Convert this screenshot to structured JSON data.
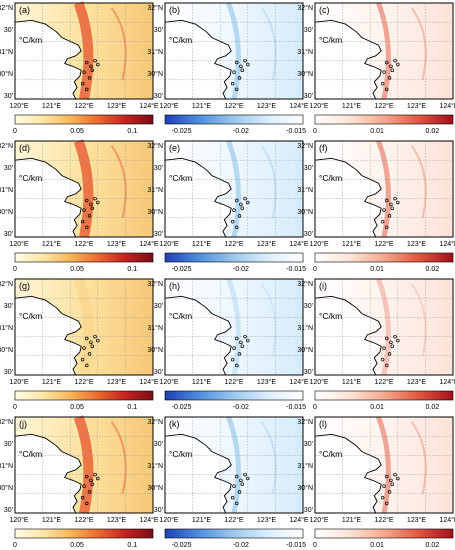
{
  "figure": {
    "unit": "°C/km",
    "lat_labels_top": [
      "32°N",
      "31°N",
      "30°N",
      "30'"
    ],
    "lat_labels_alt": [
      "32°N",
      "30'",
      "31°N",
      "30°N",
      "30'"
    ],
    "lon_labels": [
      "120°E",
      "121°E",
      "122°E",
      "123°E",
      "124°E"
    ],
    "panel_letters": [
      "(a)",
      "(b)",
      "(c)",
      "(d)",
      "(e)",
      "(f)",
      "(g)",
      "(h)",
      "(i)",
      "(j)",
      "(k)",
      "(l)"
    ],
    "colorbars": [
      {
        "type": "sequential-ylorrd",
        "ticks": [
          "0",
          "0.05",
          "0.1"
        ]
      },
      {
        "type": "sequential-blues",
        "ticks": [
          "-0.025",
          "-0.02",
          "-0.015"
        ]
      },
      {
        "type": "sequential-reds",
        "ticks": [
          "0",
          "0.01",
          "0.02"
        ]
      }
    ],
    "colors": {
      "frame": "#000000",
      "grid": "#9a9a9a",
      "coast": "#000000",
      "ylorrd": [
        "#fffce6",
        "#fde7a8",
        "#f8b85a",
        "#ea6a2e",
        "#c4221f",
        "#7c0d16"
      ],
      "blues": [
        "#1e3fb8",
        "#4f8fdd",
        "#9cc9ee",
        "#dcefff",
        "#ffffff"
      ],
      "reds": [
        "#ffffff",
        "#fde4d8",
        "#f5a98e",
        "#e1573f",
        "#a30f1b"
      ]
    }
  }
}
